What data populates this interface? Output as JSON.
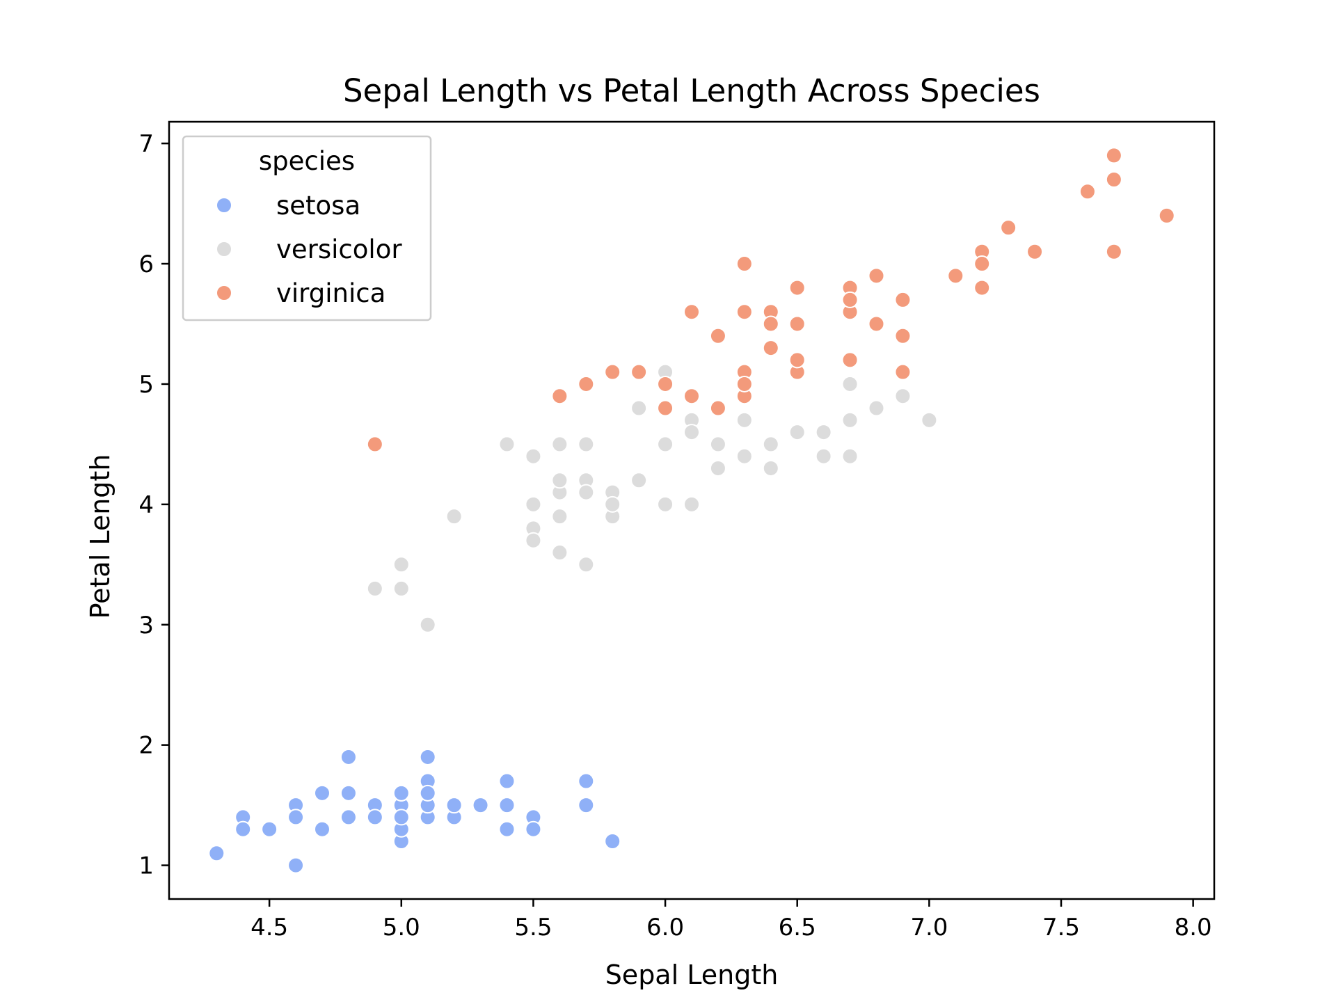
{
  "chart_data": {
    "type": "scatter",
    "title": "Sepal Length vs Petal Length Across Species",
    "xlabel": "Sepal Length",
    "ylabel": "Petal Length",
    "xlim": [
      4.12,
      8.08
    ],
    "ylim": [
      0.72,
      7.18
    ],
    "x_ticks": [
      {
        "value": 4.5,
        "label": "4.5"
      },
      {
        "value": 5.0,
        "label": "5.0"
      },
      {
        "value": 5.5,
        "label": "5.5"
      },
      {
        "value": 6.0,
        "label": "6.0"
      },
      {
        "value": 6.5,
        "label": "6.5"
      },
      {
        "value": 7.0,
        "label": "7.0"
      },
      {
        "value": 7.5,
        "label": "7.5"
      },
      {
        "value": 8.0,
        "label": "8.0"
      }
    ],
    "y_ticks": [
      {
        "value": 1,
        "label": "1"
      },
      {
        "value": 2,
        "label": "2"
      },
      {
        "value": 3,
        "label": "3"
      },
      {
        "value": 4,
        "label": "4"
      },
      {
        "value": 5,
        "label": "5"
      },
      {
        "value": 6,
        "label": "6"
      },
      {
        "value": 7,
        "label": "7"
      }
    ],
    "grid": false,
    "legend": {
      "title": "species",
      "placement": "upper-left"
    },
    "series": [
      {
        "name": "setosa",
        "color": "#8fb0f7",
        "points": [
          [
            5.1,
            1.4
          ],
          [
            4.9,
            1.4
          ],
          [
            4.7,
            1.3
          ],
          [
            4.6,
            1.5
          ],
          [
            5.0,
            1.4
          ],
          [
            5.4,
            1.7
          ],
          [
            4.6,
            1.4
          ],
          [
            5.0,
            1.5
          ],
          [
            4.4,
            1.4
          ],
          [
            4.9,
            1.5
          ],
          [
            5.4,
            1.5
          ],
          [
            4.8,
            1.6
          ],
          [
            4.8,
            1.4
          ],
          [
            4.3,
            1.1
          ],
          [
            5.8,
            1.2
          ],
          [
            5.7,
            1.5
          ],
          [
            5.4,
            1.3
          ],
          [
            5.1,
            1.4
          ],
          [
            5.7,
            1.7
          ],
          [
            5.1,
            1.5
          ],
          [
            5.4,
            1.7
          ],
          [
            5.1,
            1.5
          ],
          [
            4.6,
            1.0
          ],
          [
            5.1,
            1.7
          ],
          [
            4.8,
            1.9
          ],
          [
            5.0,
            1.6
          ],
          [
            5.0,
            1.6
          ],
          [
            5.2,
            1.5
          ],
          [
            5.2,
            1.4
          ],
          [
            4.7,
            1.6
          ],
          [
            4.8,
            1.6
          ],
          [
            5.4,
            1.5
          ],
          [
            5.2,
            1.5
          ],
          [
            5.5,
            1.4
          ],
          [
            4.9,
            1.5
          ],
          [
            5.0,
            1.2
          ],
          [
            5.5,
            1.3
          ],
          [
            4.9,
            1.4
          ],
          [
            4.4,
            1.3
          ],
          [
            5.1,
            1.5
          ],
          [
            5.0,
            1.3
          ],
          [
            4.5,
            1.3
          ],
          [
            4.4,
            1.3
          ],
          [
            5.0,
            1.6
          ],
          [
            5.1,
            1.9
          ],
          [
            4.8,
            1.4
          ],
          [
            5.1,
            1.6
          ],
          [
            4.6,
            1.4
          ],
          [
            5.3,
            1.5
          ],
          [
            5.0,
            1.4
          ]
        ]
      },
      {
        "name": "versicolor",
        "color": "#dcdcdc",
        "points": [
          [
            7.0,
            4.7
          ],
          [
            6.4,
            4.5
          ],
          [
            6.9,
            4.9
          ],
          [
            5.5,
            4.0
          ],
          [
            6.5,
            4.6
          ],
          [
            5.7,
            4.5
          ],
          [
            6.3,
            4.7
          ],
          [
            4.9,
            3.3
          ],
          [
            6.6,
            4.6
          ],
          [
            5.2,
            3.9
          ],
          [
            5.0,
            3.5
          ],
          [
            5.9,
            4.2
          ],
          [
            6.0,
            4.0
          ],
          [
            6.1,
            4.7
          ],
          [
            5.6,
            3.6
          ],
          [
            6.7,
            4.4
          ],
          [
            5.6,
            4.5
          ],
          [
            5.8,
            4.1
          ],
          [
            6.2,
            4.5
          ],
          [
            5.6,
            3.9
          ],
          [
            5.9,
            4.8
          ],
          [
            6.1,
            4.0
          ],
          [
            6.3,
            4.9
          ],
          [
            6.1,
            4.7
          ],
          [
            6.4,
            4.3
          ],
          [
            6.6,
            4.4
          ],
          [
            6.8,
            4.8
          ],
          [
            6.7,
            5.0
          ],
          [
            6.0,
            4.5
          ],
          [
            5.7,
            3.5
          ],
          [
            5.5,
            3.8
          ],
          [
            5.5,
            3.7
          ],
          [
            5.8,
            3.9
          ],
          [
            6.0,
            5.1
          ],
          [
            5.4,
            4.5
          ],
          [
            6.0,
            4.5
          ],
          [
            6.7,
            4.7
          ],
          [
            6.3,
            4.4
          ],
          [
            5.6,
            4.1
          ],
          [
            5.5,
            4.0
          ],
          [
            5.5,
            4.4
          ],
          [
            6.1,
            4.6
          ],
          [
            5.8,
            4.0
          ],
          [
            5.0,
            3.3
          ],
          [
            5.6,
            4.2
          ],
          [
            5.7,
            4.2
          ],
          [
            5.7,
            4.2
          ],
          [
            6.2,
            4.3
          ],
          [
            5.1,
            3.0
          ],
          [
            5.7,
            4.1
          ]
        ]
      },
      {
        "name": "virginica",
        "color": "#f39a7b",
        "points": [
          [
            6.3,
            6.0
          ],
          [
            5.8,
            5.1
          ],
          [
            7.1,
            5.9
          ],
          [
            6.3,
            5.6
          ],
          [
            6.5,
            5.8
          ],
          [
            7.6,
            6.6
          ],
          [
            4.9,
            4.5
          ],
          [
            7.3,
            6.3
          ],
          [
            6.7,
            5.8
          ],
          [
            7.2,
            6.1
          ],
          [
            6.5,
            5.1
          ],
          [
            6.4,
            5.3
          ],
          [
            6.8,
            5.5
          ],
          [
            5.7,
            5.0
          ],
          [
            5.8,
            5.1
          ],
          [
            6.4,
            5.3
          ],
          [
            6.5,
            5.5
          ],
          [
            7.7,
            6.7
          ],
          [
            7.7,
            6.9
          ],
          [
            6.0,
            5.0
          ],
          [
            6.9,
            5.7
          ],
          [
            5.6,
            4.9
          ],
          [
            7.7,
            6.7
          ],
          [
            6.3,
            4.9
          ],
          [
            6.7,
            5.7
          ],
          [
            7.2,
            6.0
          ],
          [
            6.2,
            4.8
          ],
          [
            6.1,
            4.9
          ],
          [
            6.4,
            5.6
          ],
          [
            7.2,
            5.8
          ],
          [
            7.4,
            6.1
          ],
          [
            7.9,
            6.4
          ],
          [
            6.4,
            5.6
          ],
          [
            6.3,
            5.1
          ],
          [
            6.1,
            5.6
          ],
          [
            7.7,
            6.1
          ],
          [
            6.3,
            5.6
          ],
          [
            6.4,
            5.5
          ],
          [
            6.0,
            4.8
          ],
          [
            6.9,
            5.4
          ],
          [
            6.7,
            5.6
          ],
          [
            6.9,
            5.1
          ],
          [
            5.8,
            5.1
          ],
          [
            6.8,
            5.9
          ],
          [
            6.7,
            5.7
          ],
          [
            6.7,
            5.2
          ],
          [
            6.3,
            5.0
          ],
          [
            6.5,
            5.2
          ],
          [
            6.2,
            5.4
          ],
          [
            5.9,
            5.1
          ]
        ]
      }
    ]
  }
}
